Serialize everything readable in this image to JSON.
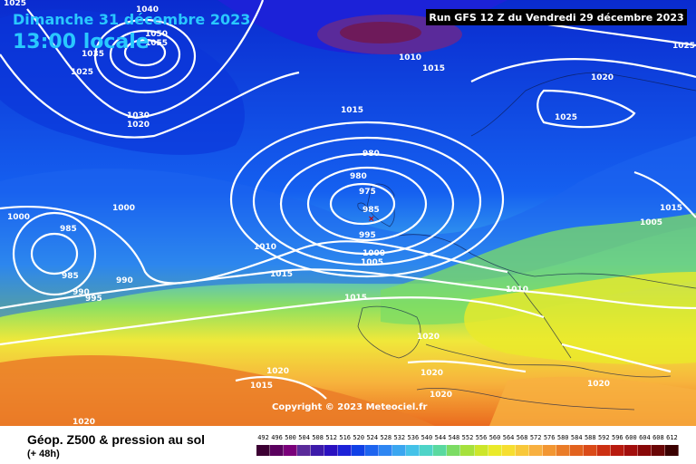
{
  "header": {
    "date": "Dimanche 31 décembre 2023",
    "local_time": "13:00 locale",
    "run_info": "Run GFS 12 Z du Vendredi 29 décembre 2023"
  },
  "map": {
    "copyright": "Copyright © 2023 Meteociel.fr",
    "isobar_labels": [
      "1025",
      "1040",
      "1050",
      "1055",
      "1035",
      "1025",
      "1030",
      "1020",
      "1010",
      "1015",
      "1015",
      "1020",
      "1025",
      "1025",
      "1000",
      "1000",
      "985",
      "985",
      "990",
      "995",
      "990",
      "980",
      "980",
      "975",
      "985",
      "995",
      "1000",
      "1005",
      "1010",
      "1015",
      "1015",
      "1010",
      "1005",
      "1015",
      "1020",
      "1020",
      "1020",
      "1015",
      "1020",
      "1020",
      "1020"
    ]
  },
  "footer": {
    "title": "Géop. Z500 & pression au sol",
    "subtitle": "(+ 48h)",
    "legend_values": [
      "492",
      "496",
      "500",
      "504",
      "508",
      "512",
      "516",
      "520",
      "524",
      "528",
      "532",
      "536",
      "540",
      "544",
      "548",
      "552",
      "556",
      "560",
      "564",
      "568",
      "572",
      "576",
      "580",
      "584",
      "588",
      "592",
      "596",
      "600",
      "604",
      "608",
      "612"
    ],
    "legend_colors": [
      "#3c0033",
      "#5a005e",
      "#7a007a",
      "#5a2a9a",
      "#3c1aaa",
      "#2a10c0",
      "#1c22d8",
      "#1040e6",
      "#1e64ef",
      "#2e86f2",
      "#3aa6f0",
      "#44c2e8",
      "#4ed4c8",
      "#5ad9a0",
      "#7cdc64",
      "#a6e13c",
      "#cce62a",
      "#eaea2a",
      "#f6de30",
      "#f8c83a",
      "#f8b040",
      "#f29632",
      "#ea7c28",
      "#e2621e",
      "#da4a18",
      "#cc3012",
      "#b81a0e",
      "#a20e0c",
      "#880808",
      "#6a0606",
      "#3a0000"
    ]
  }
}
